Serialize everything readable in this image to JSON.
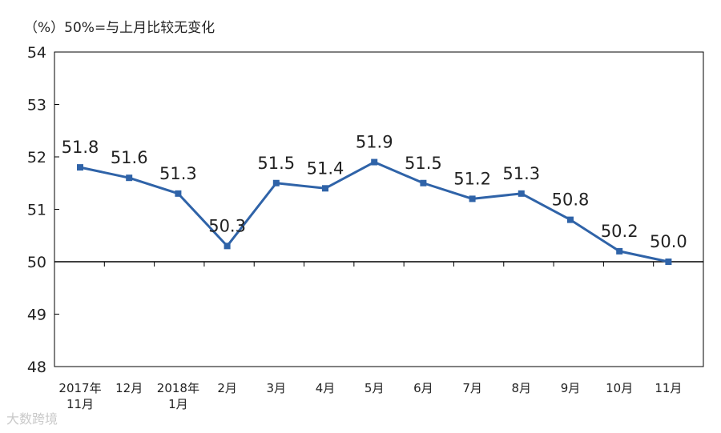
{
  "chart_data": {
    "type": "line",
    "title": "",
    "unit_note": "（%）50%=与上月比较无变化",
    "xlabel": "",
    "ylabel": "",
    "categories": [
      "2017年\n11月",
      "12月",
      "2018年\n1月",
      "2月",
      "3月",
      "4月",
      "5月",
      "6月",
      "7月",
      "8月",
      "9月",
      "10月",
      "11月"
    ],
    "series": [
      {
        "values": [
          51.8,
          51.6,
          51.3,
          50.3,
          51.5,
          51.4,
          51.9,
          51.5,
          51.2,
          51.3,
          50.8,
          50.2,
          50.0
        ]
      }
    ],
    "data_labels": [
      "51.8",
      "51.6",
      "51.3",
      "50.3",
      "51.5",
      "51.4",
      "51.9",
      "51.5",
      "51.2",
      "51.3",
      "50.8",
      "50.2",
      "50.0"
    ],
    "ylim": [
      48,
      54
    ],
    "yticks": [
      48,
      49,
      50,
      51,
      52,
      53,
      54
    ],
    "baseline": 50,
    "grid": false,
    "legend": "none",
    "colors": {
      "line": "#2f63a8",
      "axis": "#000000",
      "text": "#222222"
    }
  },
  "watermark": "大数跨境"
}
